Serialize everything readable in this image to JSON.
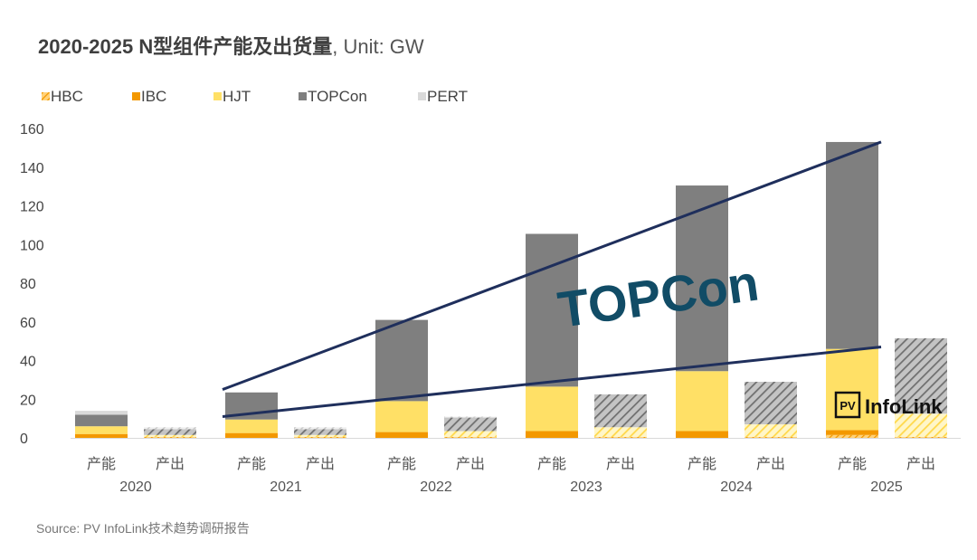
{
  "chart_data": {
    "type": "bar",
    "stacked": true,
    "title": "2020-2025 N型组件产能及出货量",
    "unit": ", Unit: GW",
    "source": "Source: PV InfoLink技术趋势调研报告",
    "ylim": [
      0,
      160
    ],
    "yticks": [
      0,
      20,
      40,
      60,
      80,
      100,
      120,
      140,
      160
    ],
    "years": [
      "2020",
      "2021",
      "2022",
      "2023",
      "2024",
      "2025"
    ],
    "sub_categories": [
      "产能",
      "产出"
    ],
    "categories": [
      "2020 产能",
      "2020 产出",
      "2021 产能",
      "2021 产出",
      "2022 产能",
      "2022 产出",
      "2023 产能",
      "2023 产出",
      "2024 产能",
      "2024 产出",
      "2025 产能",
      "2025 产出"
    ],
    "series": [
      {
        "name": "HBC",
        "color": "#F5A800",
        "values": [
          0,
          0,
          0,
          0,
          0,
          0,
          0,
          0,
          0,
          0,
          1.5,
          0
        ]
      },
      {
        "name": "IBC",
        "color": "#F39800",
        "values": [
          2,
          0.5,
          2.5,
          0.5,
          3,
          0.5,
          3.5,
          0.5,
          3.5,
          0.5,
          2.5,
          0.5
        ]
      },
      {
        "name": "HJT",
        "color": "#FFE066",
        "values": [
          4,
          1,
          7,
          1,
          16,
          3,
          23,
          5,
          31,
          6.5,
          42,
          12
        ]
      },
      {
        "name": "TOPCon",
        "color": "#7F7F7F",
        "values": [
          6,
          3,
          14,
          3,
          42,
          7,
          79,
          17,
          96,
          22,
          107,
          39
        ]
      },
      {
        "name": "PERT",
        "color": "#D9D9D9",
        "values": [
          2,
          1,
          0,
          1,
          0,
          0.5,
          0,
          0,
          0,
          0,
          0,
          0
        ]
      }
    ],
    "annotations": {
      "trend_label": "TOPCon",
      "trend_lines": [
        {
          "from": [
            "2021 产能",
            25
          ],
          "to": [
            "2025 产能",
            153
          ]
        },
        {
          "from": [
            "2021 产能",
            11
          ],
          "to": [
            "2025 产能",
            47
          ]
        }
      ],
      "logo_badge": "PV",
      "logo_text": "InfoLink"
    }
  }
}
